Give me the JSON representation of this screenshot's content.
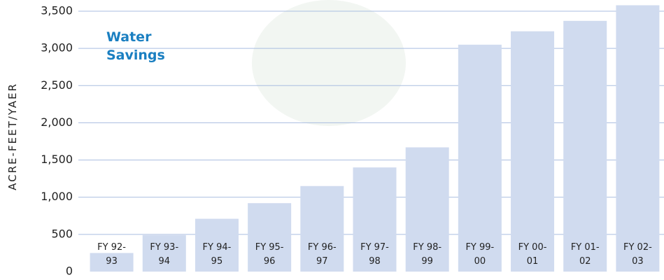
{
  "chart_data": {
    "type": "bar",
    "title": "Water Savings",
    "y_label": "ACRE-FEET/YAER",
    "categories": [
      "FY 92-93",
      "FY 93-94",
      "FY 94-95",
      "FY 95-96",
      "FY 96-97",
      "FY 97-98",
      "FY 98-99",
      "FY 99-00",
      "FY 00-01",
      "FY 01-02",
      "FY 02-03"
    ],
    "values": [
      250,
      490,
      710,
      920,
      1150,
      1400,
      1670,
      3050,
      3230,
      3370,
      3580
    ],
    "color": "#d0dbef",
    "ylim": [
      0,
      3600
    ],
    "yticks": [
      0,
      500,
      {
        "value": 1000,
        "label": "1,000"
      },
      {
        "value": 1500,
        "label": "1,500"
      },
      {
        "value": 2000,
        "label": "2,000"
      },
      {
        "value": 2500,
        "label": "2,500"
      },
      {
        "value": 3000,
        "label": "3,000"
      },
      {
        "value": 3500,
        "label": "3,500"
      }
    ],
    "grid": true
  }
}
